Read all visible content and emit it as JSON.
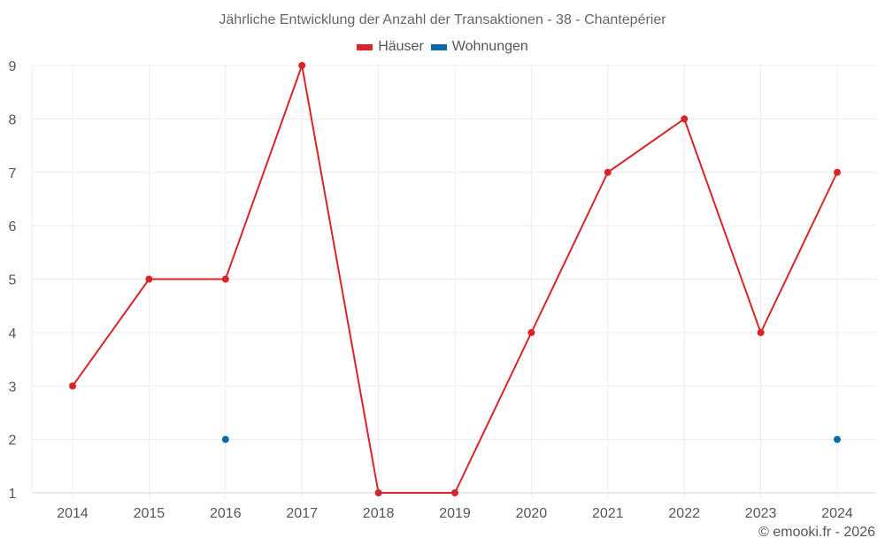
{
  "chart_data": {
    "type": "line",
    "title": "Jährliche Entwicklung der Anzahl der Transaktionen - 38 - Chantepérier",
    "xlabel": "",
    "ylabel": "",
    "categories": [
      "2014",
      "2015",
      "2016",
      "2017",
      "2018",
      "2019",
      "2020",
      "2021",
      "2022",
      "2023",
      "2024"
    ],
    "ylim": [
      1,
      9
    ],
    "yticks": [
      "1",
      "2",
      "3",
      "4",
      "5",
      "6",
      "7",
      "8",
      "9"
    ],
    "grid": true,
    "legend_position": "top",
    "series": [
      {
        "name": "Häuser",
        "color": "#d7262b",
        "values": [
          3,
          5,
          5,
          9,
          1,
          1,
          4,
          7,
          8,
          4,
          7
        ]
      },
      {
        "name": "Wohnungen",
        "color": "#0a6aa1",
        "values": [
          null,
          null,
          2,
          null,
          null,
          null,
          null,
          null,
          null,
          null,
          2
        ]
      }
    ]
  },
  "legend": {
    "items": [
      {
        "label": "Häuser",
        "color": "#d7262b"
      },
      {
        "label": "Wohnungen",
        "color": "#0a6aa1"
      }
    ]
  },
  "credit": "© emooki.fr - 2026"
}
